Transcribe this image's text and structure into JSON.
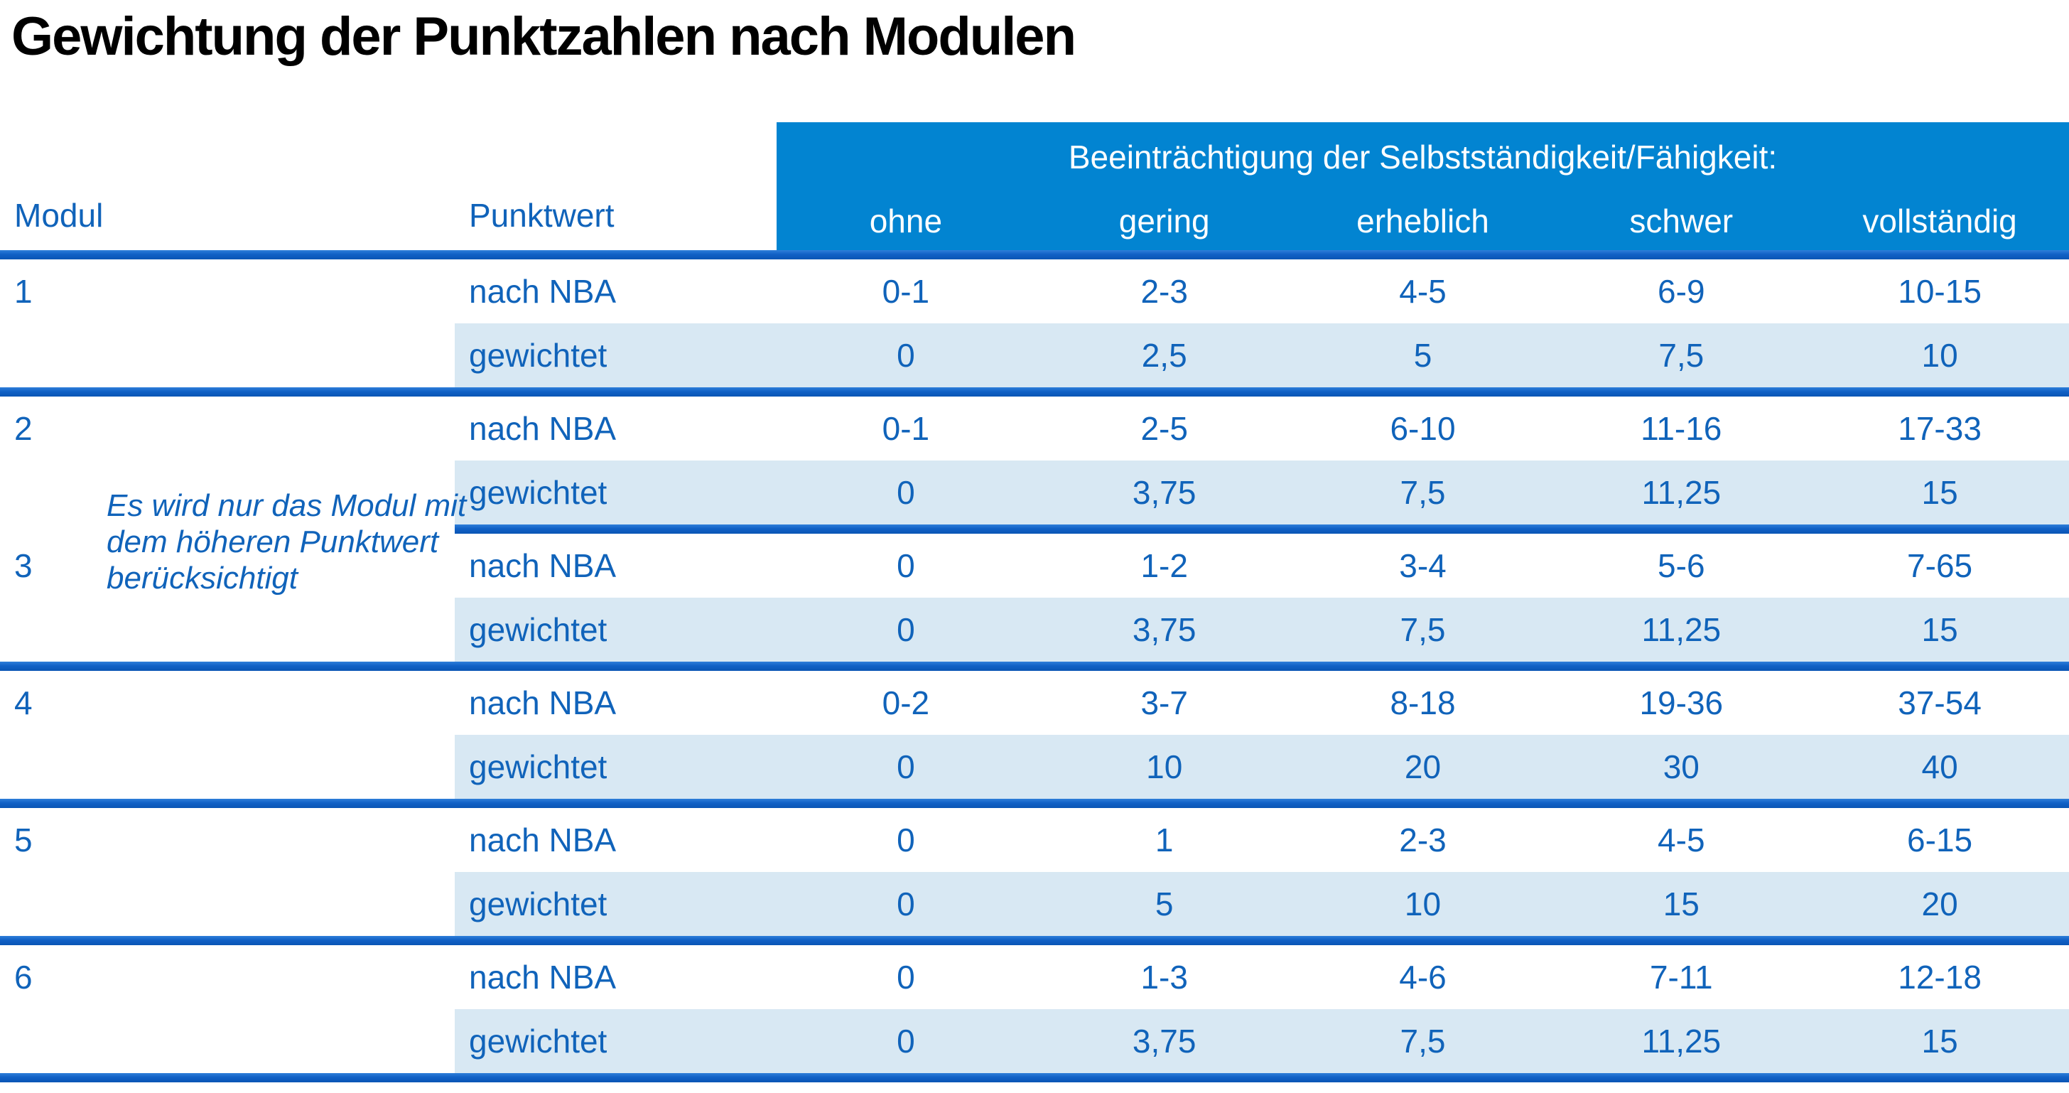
{
  "title": "Gewichtung der Punktzahlen nach Modulen",
  "table": {
    "col_headers": {
      "modul": "Modul",
      "punktwert": "Punktwert"
    },
    "band_title": "Beeinträchtigung der Selbstständigkeit/Fähigkeit:",
    "severity_levels": [
      "ohne",
      "gering",
      "erheblich",
      "schwer",
      "vollständig"
    ],
    "row_labels": {
      "nba": "nach NBA",
      "weighted": "gewichtet"
    },
    "note": "Es wird nur das Modul mit dem höheren Punktwert berücksichtigt",
    "modules": [
      {
        "id": "1",
        "nba": [
          "0-1",
          "2-3",
          "4-5",
          "6-9",
          "10-15"
        ],
        "weighted": [
          "0",
          "2,5",
          "5",
          "7,5",
          "10"
        ]
      },
      {
        "id": "2",
        "nba": [
          "0-1",
          "2-5",
          "6-10",
          "11-16",
          "17-33"
        ],
        "weighted": [
          "0",
          "3,75",
          "7,5",
          "11,25",
          "15"
        ]
      },
      {
        "id": "3",
        "nba": [
          "0",
          "1-2",
          "3-4",
          "5-6",
          "7-65"
        ],
        "weighted": [
          "0",
          "3,75",
          "7,5",
          "11,25",
          "15"
        ]
      },
      {
        "id": "4",
        "nba": [
          "0-2",
          "3-7",
          "8-18",
          "19-36",
          "37-54"
        ],
        "weighted": [
          "0",
          "10",
          "20",
          "30",
          "40"
        ]
      },
      {
        "id": "5",
        "nba": [
          "0",
          "1",
          "2-3",
          "4-5",
          "6-15"
        ],
        "weighted": [
          "0",
          "5",
          "10",
          "15",
          "20"
        ]
      },
      {
        "id": "6",
        "nba": [
          "0",
          "1-3",
          "4-6",
          "7-11",
          "12-18"
        ],
        "weighted": [
          "0",
          "3,75",
          "7,5",
          "11,25",
          "15"
        ]
      }
    ]
  },
  "colors": {
    "header_band": "#0284D1",
    "row_highlight": "#D8E8F3",
    "divider": "#1161C6",
    "text_blue": "#1063BA",
    "title_color": "#000000"
  }
}
